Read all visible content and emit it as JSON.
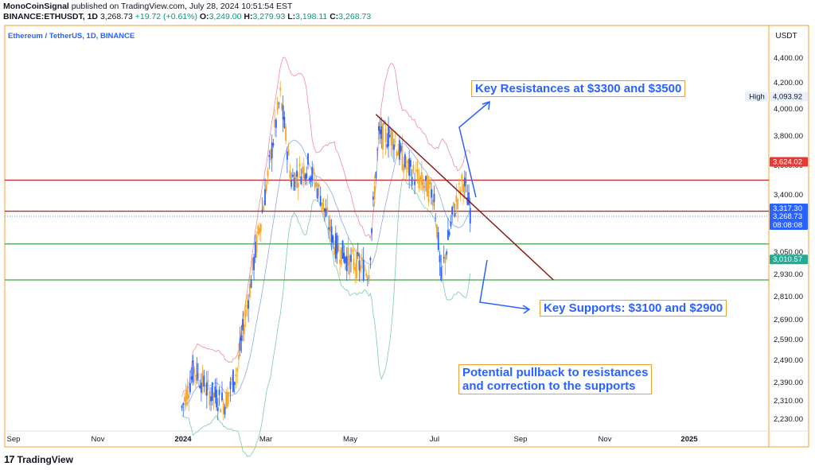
{
  "header": {
    "publisher": "MonoCoinSignal",
    "published_text": "published on TradingView.com, July 28, 2024 10:51:54 EST",
    "symbol": "BINANCE:ETHUSDT, 1D",
    "last": "3,268.73",
    "change": "+19.72 (+0.61%)",
    "o_label": "O:",
    "o": "3,249.00",
    "h_label": "H:",
    "h": "3,279.93",
    "l_label": "L:",
    "l": "3,198.11",
    "c_label": "C:",
    "c": "3,268.73"
  },
  "legend_title": "Ethereum / TetherUS, 1D, BINANCE",
  "currency": "USDT",
  "footer": {
    "logo": "17",
    "brand": "TradingView"
  },
  "annotations": {
    "resistance": "Key Resistances at $3300 and $3500",
    "supports": "Key Supports: $3100 and $2900",
    "pullback_line1": "Potential pullback to resistances",
    "pullback_line2": "and correction to the supports"
  },
  "colors": {
    "up": "#2962ff",
    "down": "#f5a623",
    "resistance_line": "#c62828",
    "support_line": "#43a047",
    "trend_line": "#8b1a1a",
    "bb_upper": "#f28b9a",
    "bb_lower": "#7fc9b4",
    "bb_mid": "#8fa8e8",
    "accent": "#2962ff"
  },
  "chart_data": {
    "type": "candlestick",
    "symbol": "ETHUSDT",
    "x_ticks": [
      "Sep",
      "Nov",
      "2024",
      "Mar",
      "May",
      "Jul",
      "Sep",
      "Nov",
      "2025"
    ],
    "y_ticks": [
      "2,230.00",
      "2,310.00",
      "2,390.00",
      "2,490.00",
      "2,590.00",
      "2,690.00",
      "2,810.00",
      "2,930.00",
      "3,050.00",
      "3,400.00",
      "3,600.00",
      "3,800.00",
      "4,000.00",
      "4,200.00",
      "4,400.00"
    ],
    "y_tick_values": [
      2230,
      2310,
      2390,
      2490,
      2590,
      2690,
      2810,
      2930,
      3050,
      3400,
      3600,
      3800,
      4000,
      4200,
      4400
    ],
    "price_labels": [
      {
        "text": "High",
        "value": 4093.92,
        "label": "4,093.92",
        "color": "#e8f0fb",
        "fg": "#131722"
      },
      {
        "text": "",
        "value": 3624.02,
        "label": "3,624.02",
        "color": "#e53935",
        "fg": "#ffffff"
      },
      {
        "text": "",
        "value": 3317.3,
        "label": "3,317.30",
        "color": "#2962ff",
        "fg": "#ffffff"
      },
      {
        "text": "",
        "value": 3268.73,
        "label": "3,268.73",
        "color": "#2962ff",
        "fg": "#ffffff"
      },
      {
        "text": "",
        "value": 3268.73,
        "label": "08:08:08",
        "color": "#2962ff",
        "fg": "#ffffff",
        "offset": 1
      },
      {
        "text": "",
        "value": 3010.57,
        "label": "3,010.57",
        "color": "#22ab94",
        "fg": "#ffffff"
      }
    ],
    "horizontal_levels": [
      {
        "value": 3500,
        "color": "#c62828"
      },
      {
        "value": 3300,
        "color": "#c62828"
      },
      {
        "value": 3100,
        "color": "#43a047"
      },
      {
        "value": 2900,
        "color": "#43a047"
      }
    ],
    "trendline": {
      "from": [
        "2024-05-20",
        3960
      ],
      "to": [
        "2024-09-25",
        2900
      ]
    },
    "price_path": [
      [
        "2024-01-01",
        2280
      ],
      [
        "2024-01-10",
        2450
      ],
      [
        "2024-01-20",
        2350
      ],
      [
        "2024-02-01",
        2300
      ],
      [
        "2024-02-10",
        2450
      ],
      [
        "2024-02-20",
        2900
      ],
      [
        "2024-03-01",
        3400
      ],
      [
        "2024-03-12",
        4093
      ],
      [
        "2024-03-20",
        3500
      ],
      [
        "2024-04-01",
        3600
      ],
      [
        "2024-04-10",
        3400
      ],
      [
        "2024-04-20",
        3100
      ],
      [
        "2024-05-01",
        3000
      ],
      [
        "2024-05-15",
        2950
      ],
      [
        "2024-05-22",
        3800
      ],
      [
        "2024-06-01",
        3800
      ],
      [
        "2024-06-10",
        3600
      ],
      [
        "2024-06-20",
        3500
      ],
      [
        "2024-07-01",
        3400
      ],
      [
        "2024-07-06",
        2900
      ],
      [
        "2024-07-15",
        3300
      ],
      [
        "2024-07-22",
        3500
      ],
      [
        "2024-07-28",
        3268
      ]
    ]
  }
}
